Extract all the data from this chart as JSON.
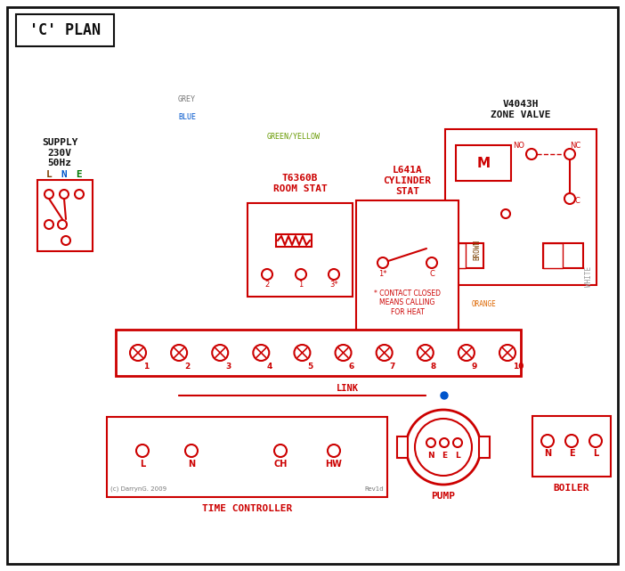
{
  "title": "'C' PLAN",
  "red": "#cc0000",
  "blue": "#0055cc",
  "green": "#007700",
  "brown": "#7B3F00",
  "grey": "#777777",
  "orange": "#DD6600",
  "black": "#111111",
  "gy": "#669900",
  "white_wire": "#999999",
  "supply_text": "SUPPLY\n230V\n50Hz",
  "zone_valve_title": "V4043H\nZONE VALVE",
  "room_stat_title": "T6360B\nROOM STAT",
  "cyl_stat_title": "L641A\nCYLINDER\nSTAT",
  "time_ctrl_label": "TIME CONTROLLER",
  "pump_label": "PUMP",
  "boiler_label": "BOILER",
  "link_label": "LINK",
  "contact_note": "* CONTACT CLOSED\nMEANS CALLING\nFOR HEAT"
}
